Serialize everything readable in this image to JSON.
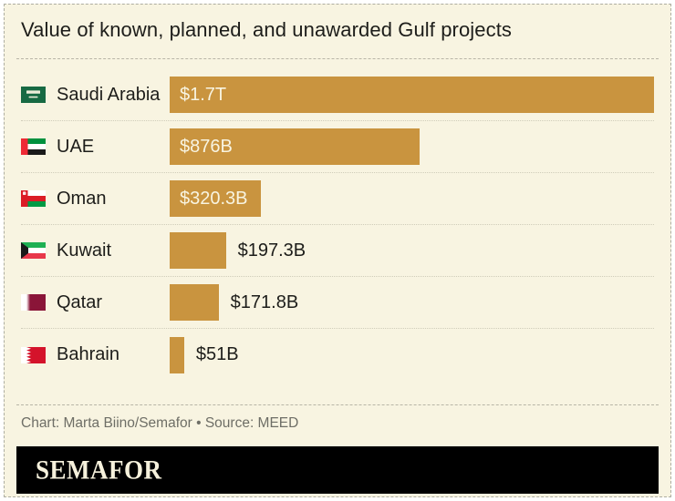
{
  "title": "Value of known, planned, and unawarded Gulf projects",
  "credit": "Chart: Marta Biino/Semafor • Source: MEED",
  "logo_text": "SEMAFOR",
  "colors": {
    "background": "#F8F4E1",
    "bar": "#C9943F",
    "ink": "#1D1D1A",
    "value_inside": "#F8F4E1",
    "credit_text": "#6E6E66",
    "logo_bg": "#000000",
    "logo_ink": "#F6F1DC"
  },
  "chart_data": {
    "type": "bar",
    "orientation": "horizontal",
    "title": "Value of known, planned, and unawarded Gulf projects",
    "categories": [
      "Saudi Arabia",
      "UAE",
      "Oman",
      "Kuwait",
      "Qatar",
      "Bahrain"
    ],
    "values_billion_usd": [
      1700,
      876,
      320.3,
      197.3,
      171.8,
      51
    ],
    "value_labels": [
      "$1.7T",
      "$876B",
      "$320.3B",
      "$197.3B",
      "$171.8B",
      "$51B"
    ],
    "xlim": [
      0,
      1700
    ],
    "grid": false,
    "legend": false,
    "bar_color": "#C9943F",
    "unit": "USD"
  },
  "rows": [
    {
      "country": "Saudi Arabia",
      "value": 1700,
      "label": "$1.7T",
      "label_inside": true
    },
    {
      "country": "UAE",
      "value": 876,
      "label": "$876B",
      "label_inside": true
    },
    {
      "country": "Oman",
      "value": 320.3,
      "label": "$320.3B",
      "label_inside": true
    },
    {
      "country": "Kuwait",
      "value": 197.3,
      "label": "$197.3B",
      "label_inside": false
    },
    {
      "country": "Qatar",
      "value": 171.8,
      "label": "$171.8B",
      "label_inside": false
    },
    {
      "country": "Bahrain",
      "value": 51,
      "label": "$51B",
      "label_inside": false
    }
  ]
}
